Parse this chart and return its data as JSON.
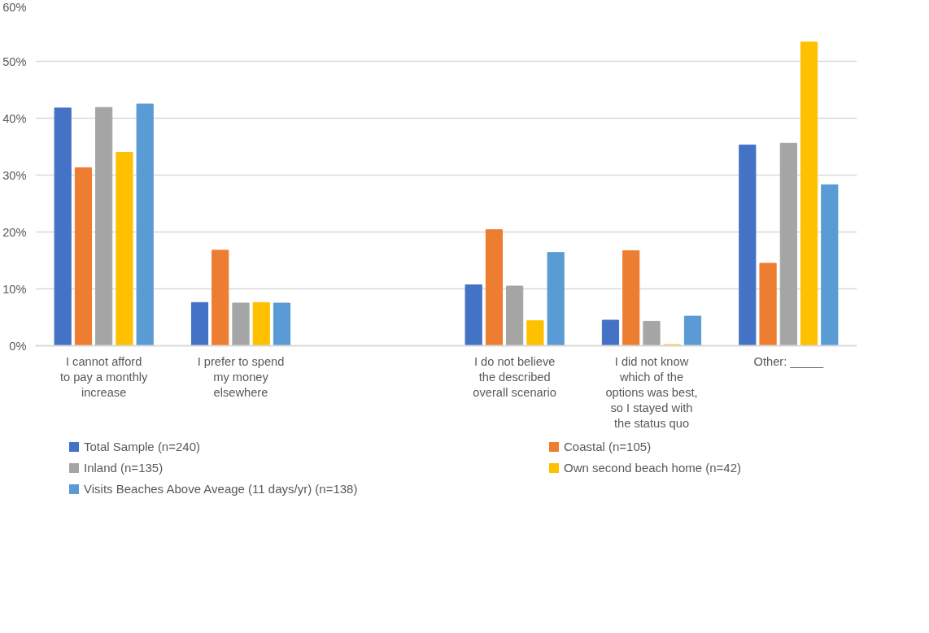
{
  "chart_data": {
    "type": "bar",
    "categories": [
      "I cannot afford to pay a monthly increase",
      "I prefer to spend my money elsewhere",
      null,
      "I do not believe the described overall scenario",
      "I did not know which of the options was best, so I stayed with the status quo",
      "Other: _____"
    ],
    "series": [
      {
        "name": "Total Sample (n=240)",
        "color": "#4472c4",
        "values": [
          41.8,
          7.6,
          null,
          10.7,
          4.5,
          35.3
        ]
      },
      {
        "name": "Coastal (n=105)",
        "color": "#ed7d31",
        "values": [
          31.3,
          16.8,
          null,
          20.4,
          16.7,
          14.5
        ]
      },
      {
        "name": "Inland (n=135)",
        "color": "#a5a5a5",
        "values": [
          41.9,
          7.5,
          null,
          10.5,
          4.3,
          35.6
        ]
      },
      {
        "name": "Own second beach home (n=42)",
        "color": "#ffc000",
        "values": [
          34.0,
          7.6,
          null,
          4.4,
          0.2,
          53.4
        ]
      },
      {
        "name": "Visits Beaches Above Aveage (11 days/yr) (n=138)",
        "color": "#5b9bd5",
        "values": [
          42.5,
          7.5,
          null,
          16.4,
          5.2,
          28.3
        ]
      }
    ],
    "ylim": [
      0,
      60
    ],
    "yticks": [
      {
        "value": 0,
        "label": "0%"
      },
      {
        "value": 10,
        "label": "10%"
      },
      {
        "value": 20,
        "label": "20%"
      },
      {
        "value": 30,
        "label": "30%"
      },
      {
        "value": 40,
        "label": "40%"
      },
      {
        "value": 50,
        "label": "50%"
      },
      {
        "value": 60,
        "label": "60%"
      }
    ],
    "grid": "y",
    "legend": "bottom"
  }
}
